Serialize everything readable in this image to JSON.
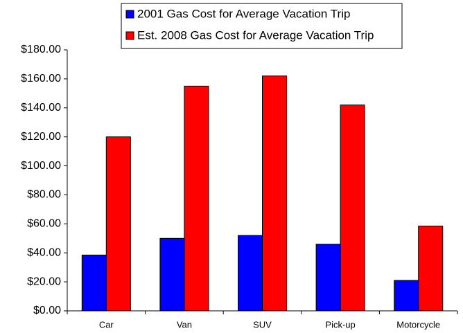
{
  "chart_data": {
    "type": "bar",
    "categories": [
      "Car",
      "Van",
      "SUV",
      "Pick-up",
      "Motorcycle"
    ],
    "series": [
      {
        "name": "2001 Gas Cost for Average Vacation Trip",
        "color": "#0000ff",
        "values": [
          38.5,
          50,
          52,
          46,
          21
        ]
      },
      {
        "name": "Est. 2008 Gas Cost for Average Vacation Trip",
        "color": "#ff0000",
        "values": [
          120,
          155,
          162,
          142,
          58.5
        ]
      }
    ],
    "ylim": [
      0,
      180
    ],
    "yticks": [
      {
        "value": 0,
        "label": "$0.00"
      },
      {
        "value": 20,
        "label": "$20.00"
      },
      {
        "value": 40,
        "label": "$40.00"
      },
      {
        "value": 60,
        "label": "$60.00"
      },
      {
        "value": 80,
        "label": "$80.00"
      },
      {
        "value": 100,
        "label": "$100.00"
      },
      {
        "value": 120,
        "label": "$120.00"
      },
      {
        "value": 140,
        "label": "$140.00"
      },
      {
        "value": 160,
        "label": "$160.00"
      },
      {
        "value": 180,
        "label": "$180.00"
      }
    ],
    "grid": false,
    "legend": "top"
  }
}
